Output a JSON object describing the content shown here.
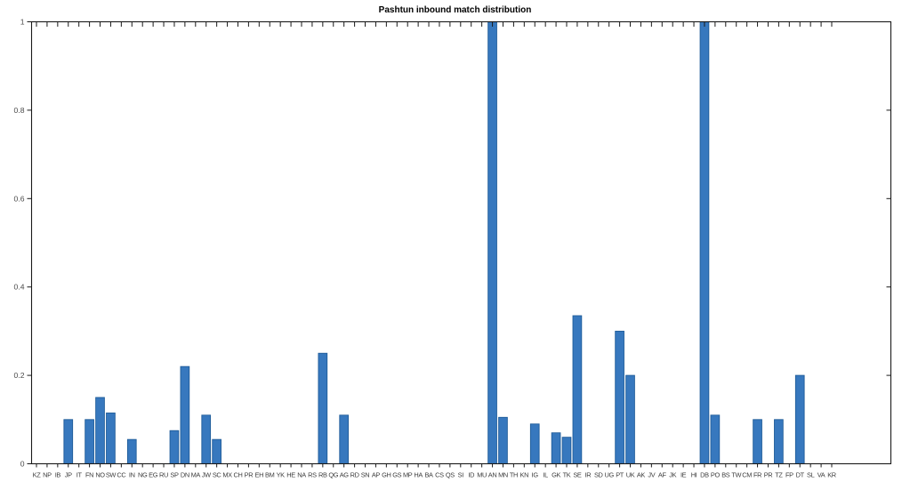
{
  "title": "Pashtun inbound match distribution",
  "colors": {
    "bar_fill": "#3778be",
    "bar_edge": "#1f5c99",
    "axis": "#1a1a1a",
    "tick": "#1a1a1a",
    "x_label_color": "#3c3c3c",
    "y_label_color": "#4a4a4a",
    "background": "#ffffff"
  },
  "chart_data": {
    "type": "bar",
    "title": "Pashtun inbound match distribution",
    "xlabel": "",
    "ylabel": "",
    "ylim": [
      0,
      1
    ],
    "yticks": [
      0,
      0.2,
      0.4,
      0.6,
      0.8,
      1
    ],
    "ytick_labels": [
      "0",
      "0.2",
      "0.4",
      "0.6",
      "0.8",
      "1"
    ],
    "grid": "off",
    "legend": "none",
    "categories": [
      "KZ",
      "NP",
      "IB",
      "JP",
      "IT",
      "FN",
      "NO",
      "SW",
      "CC",
      "IN",
      "NG",
      "EG",
      "RU",
      "SP",
      "DN",
      "MA",
      "JW",
      "SC",
      "MX",
      "CH",
      "PR",
      "EH",
      "BM",
      "YK",
      "HE",
      "NA",
      "RS",
      "RB",
      "QG",
      "AG",
      "RD",
      "SN",
      "AP",
      "GH",
      "GS",
      "MP",
      "HA",
      "BA",
      "CS",
      "QS",
      "SI",
      "ID",
      "MU",
      "AN",
      "MN",
      "TH",
      "KN",
      "IG",
      "IL",
      "GK",
      "TK",
      "SE",
      "IR",
      "SD",
      "UG",
      "PT",
      "UK",
      "AK",
      "JV",
      "AF",
      "JK",
      "IE",
      "HI",
      "DB",
      "PO",
      "BS",
      "TW",
      "CM",
      "FR",
      "PR",
      "TZ",
      "FP",
      "DT",
      "SL",
      "VA",
      "KR"
    ],
    "values": [
      0,
      0,
      0,
      0.1,
      0,
      0.1,
      0.15,
      0.115,
      0,
      0.055,
      0,
      0,
      0,
      0.075,
      0.22,
      0,
      0.11,
      0.055,
      0,
      0,
      0,
      0,
      0,
      0,
      0,
      0,
      0,
      0.25,
      0,
      0.11,
      0,
      0,
      0,
      0,
      0,
      0,
      0,
      0,
      0,
      0,
      0,
      0,
      0,
      1,
      0.105,
      0,
      0,
      0.09,
      0,
      0.07,
      0.06,
      0.335,
      0,
      0,
      0,
      0.3,
      0.2,
      0,
      0,
      0,
      0,
      0,
      0,
      1,
      0.11,
      0,
      0,
      0,
      0.1,
      0,
      0.1,
      0,
      0.2,
      0,
      0,
      0
    ]
  }
}
